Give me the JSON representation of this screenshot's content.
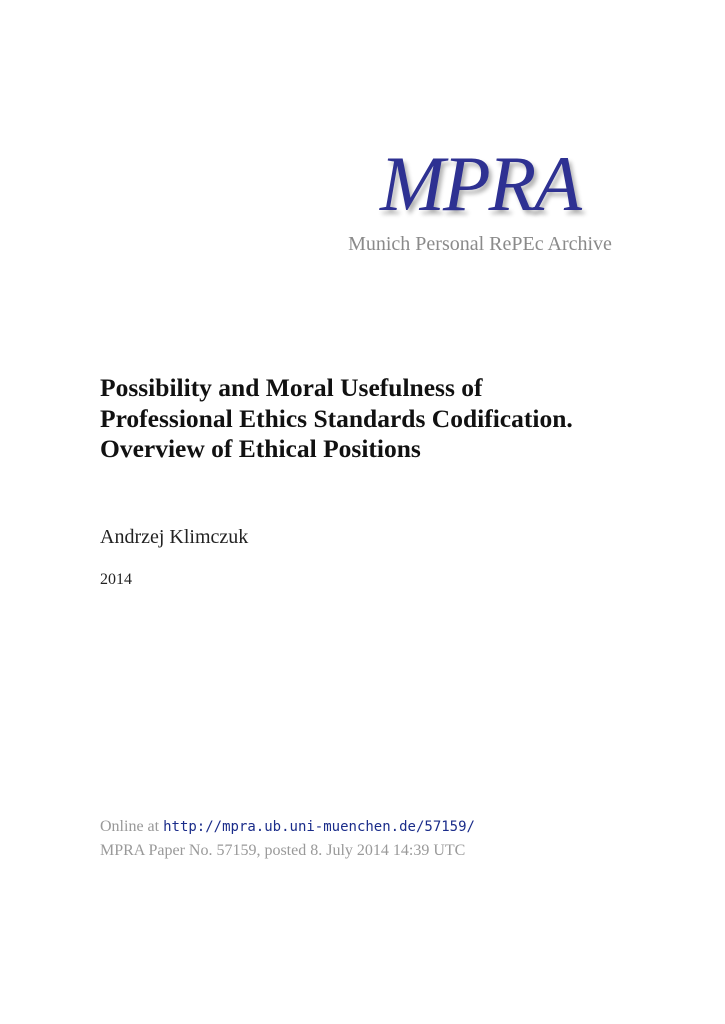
{
  "logo": {
    "mark": "MPRA",
    "subtitle": "Munich Personal RePEc Archive",
    "color": "#2e3192"
  },
  "paper": {
    "title": "Possibility and Moral Usefulness of Professional Ethics Standards Codification. Overview of Ethical Positions",
    "author": "Andrzej Klimczuk",
    "year": "2014"
  },
  "footer": {
    "online_prefix": "Online at",
    "url": "http://mpra.ub.uni-muenchen.de/57159/",
    "posted": "MPRA Paper No. 57159, posted 8. July 2014 14:39 UTC"
  }
}
